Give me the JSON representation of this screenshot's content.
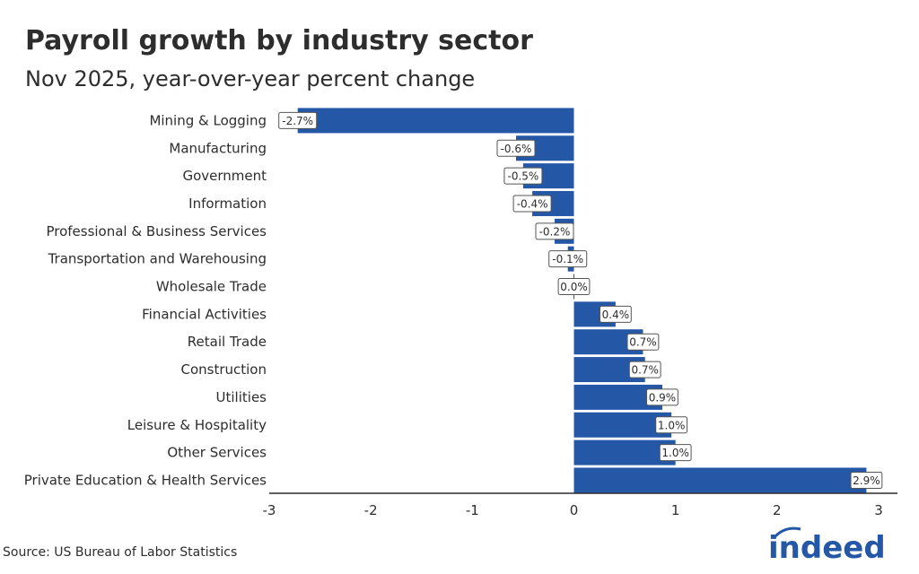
{
  "chart_data": {
    "type": "bar",
    "orientation": "horizontal",
    "title": "Payroll growth by industry sector",
    "subtitle": "Nov 2025, year-over-year percent change",
    "categories": [
      "Mining & Logging",
      "Manufacturing",
      "Government",
      "Information",
      "Professional & Business Services",
      "Transportation and Warehousing",
      "Wholesale Trade",
      "Financial Activities",
      "Retail Trade",
      "Construction",
      "Utilities",
      "Leisure & Hospitality",
      "Other Services",
      "Private Education & Health Services"
    ],
    "values": [
      -2.72,
      -0.57,
      -0.5,
      -0.41,
      -0.19,
      -0.06,
      0.0,
      0.41,
      0.68,
      0.7,
      0.87,
      0.96,
      1.0,
      2.88
    ],
    "data_labels": [
      "-2.7%",
      "-0.6%",
      "-0.5%",
      "-0.4%",
      "-0.2%",
      "-0.1%",
      "0.0%",
      "0.4%",
      "0.7%",
      "0.7%",
      "0.9%",
      "1.0%",
      "1.0%",
      "2.9%"
    ],
    "xlim": [
      -3,
      3
    ],
    "xticks": [
      "-3",
      "-2",
      "-1",
      "0",
      "1",
      "2",
      "3"
    ],
    "xlabel": "",
    "ylabel": "",
    "grid": false,
    "legend": "none",
    "bar_color": "#2557a7"
  },
  "source": "Source: US Bureau of Labor Statistics",
  "logo_text": "indeed",
  "logo_color": "#2557a7"
}
